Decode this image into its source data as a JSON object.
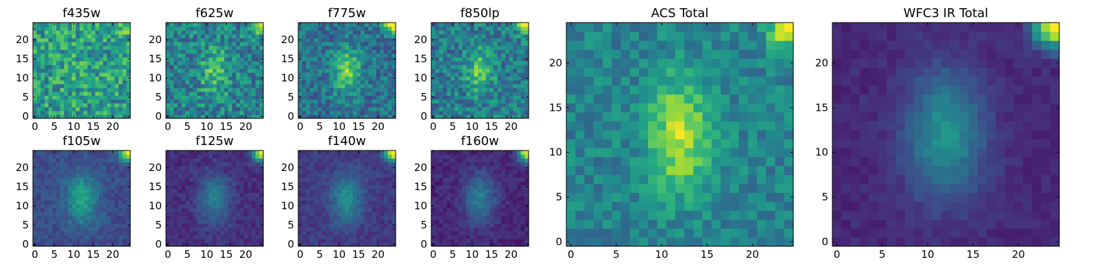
{
  "chart_data": {
    "type": "heatmap",
    "colormap": "viridis",
    "grid": false,
    "panels": [
      {
        "title": "f435w",
        "xticks": [
          0,
          5,
          10,
          15,
          20
        ],
        "yticks": [
          0,
          5,
          10,
          15,
          20
        ],
        "xlim": [
          0,
          25
        ],
        "ylim": [
          0,
          25
        ],
        "blob_strength": 0.05,
        "blob_sx": 4.0,
        "blob_sy": 7.0,
        "corner_strength": 0.3,
        "base": 0.55,
        "noise": 0.22,
        "seed": 11
      },
      {
        "title": "f625w",
        "xticks": [
          0,
          5,
          10,
          15,
          20
        ],
        "yticks": [
          0,
          5,
          10,
          15,
          20
        ],
        "xlim": [
          0,
          25
        ],
        "ylim": [
          0,
          25
        ],
        "blob_strength": 0.28,
        "blob_sx": 2.4,
        "blob_sy": 4.0,
        "corner_strength": 0.55,
        "base": 0.45,
        "noise": 0.2,
        "seed": 23
      },
      {
        "title": "f775w",
        "xticks": [
          0,
          5,
          10,
          15,
          20
        ],
        "yticks": [
          0,
          5,
          10,
          15,
          20
        ],
        "xlim": [
          0,
          25
        ],
        "ylim": [
          0,
          25
        ],
        "blob_strength": 0.42,
        "blob_sx": 2.4,
        "blob_sy": 4.0,
        "corner_strength": 0.65,
        "base": 0.38,
        "noise": 0.16,
        "seed": 37
      },
      {
        "title": "f850lp",
        "xticks": [
          0,
          5,
          10,
          15,
          20
        ],
        "yticks": [
          0,
          5,
          10,
          15,
          20
        ],
        "xlim": [
          0,
          25
        ],
        "ylim": [
          0,
          25
        ],
        "blob_strength": 0.33,
        "blob_sx": 2.4,
        "blob_sy": 4.0,
        "corner_strength": 0.65,
        "base": 0.42,
        "noise": 0.18,
        "seed": 41
      },
      {
        "title": "f105w",
        "xticks": [
          0,
          5,
          10,
          15,
          20
        ],
        "yticks": [
          0,
          5,
          10,
          15,
          20
        ],
        "xlim": [
          0,
          25
        ],
        "ylim": [
          0,
          25
        ],
        "blob_strength": 0.35,
        "blob_sx": 2.8,
        "blob_sy": 4.5,
        "corner_strength": 0.8,
        "base": 0.24,
        "noise": 0.07,
        "seed": 53
      },
      {
        "title": "f125w",
        "xticks": [
          0,
          5,
          10,
          15,
          20
        ],
        "yticks": [
          0,
          5,
          10,
          15,
          20
        ],
        "xlim": [
          0,
          25
        ],
        "ylim": [
          0,
          25
        ],
        "blob_strength": 0.3,
        "blob_sx": 2.8,
        "blob_sy": 4.5,
        "corner_strength": 0.85,
        "base": 0.14,
        "noise": 0.06,
        "seed": 61
      },
      {
        "title": "f140w",
        "xticks": [
          0,
          5,
          10,
          15,
          20
        ],
        "yticks": [
          0,
          5,
          10,
          15,
          20
        ],
        "xlim": [
          0,
          25
        ],
        "ylim": [
          0,
          25
        ],
        "blob_strength": 0.32,
        "blob_sx": 2.8,
        "blob_sy": 4.5,
        "corner_strength": 0.85,
        "base": 0.18,
        "noise": 0.06,
        "seed": 71
      },
      {
        "title": "f160w",
        "xticks": [
          0,
          5,
          10,
          15,
          20
        ],
        "yticks": [
          0,
          5,
          10,
          15,
          20
        ],
        "xlim": [
          0,
          25
        ],
        "ylim": [
          0,
          25
        ],
        "blob_strength": 0.32,
        "blob_sx": 2.8,
        "blob_sy": 4.5,
        "corner_strength": 0.85,
        "base": 0.12,
        "noise": 0.06,
        "seed": 83
      },
      {
        "title": "ACS Total",
        "xticks": [
          0,
          5,
          10,
          15,
          20
        ],
        "yticks": [
          0,
          5,
          10,
          15,
          20
        ],
        "xlim": [
          0,
          25
        ],
        "ylim": [
          0,
          25
        ],
        "blob_strength": 0.45,
        "blob_sx": 2.4,
        "blob_sy": 4.5,
        "corner_strength": 0.55,
        "base": 0.45,
        "noise": 0.12,
        "seed": 97
      },
      {
        "title": "WFC3 IR Total",
        "xticks": [
          0,
          5,
          10,
          15,
          20
        ],
        "yticks": [
          0,
          5,
          10,
          15,
          20
        ],
        "xlim": [
          0,
          25
        ],
        "ylim": [
          0,
          25
        ],
        "blob_strength": 0.4,
        "blob_sx": 3.0,
        "blob_sy": 5.0,
        "corner_strength": 0.9,
        "base": 0.12,
        "noise": 0.04,
        "seed": 101
      }
    ],
    "source_center": [
      12,
      12
    ],
    "corner_source": [
      24,
      24
    ]
  }
}
